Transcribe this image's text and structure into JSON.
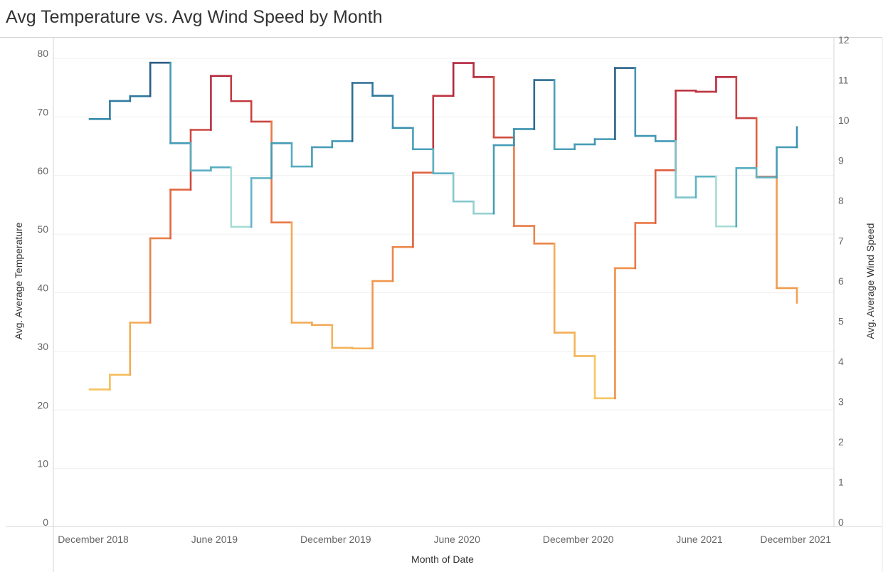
{
  "title": "Avg Temperature vs. Avg Wind Speed by Month",
  "chart_data": {
    "type": "line",
    "title": "Avg Temperature vs. Avg Wind Speed by Month",
    "xlabel": "Month of Date",
    "ylabel_left": "Avg. Average Temperature",
    "ylabel_right": "Avg. Average Wind Speed",
    "x_ticks": [
      "December 2018",
      "June 2019",
      "December 2019",
      "June 2020",
      "December 2020",
      "June 2021",
      "December 2021"
    ],
    "x_months": [
      "2018-12",
      "2019-01",
      "2019-02",
      "2019-03",
      "2019-04",
      "2019-05",
      "2019-06",
      "2019-07",
      "2019-08",
      "2019-09",
      "2019-10",
      "2019-11",
      "2019-12",
      "2020-01",
      "2020-02",
      "2020-03",
      "2020-04",
      "2020-05",
      "2020-06",
      "2020-07",
      "2020-08",
      "2020-09",
      "2020-10",
      "2020-11",
      "2020-12",
      "2021-01",
      "2021-02",
      "2021-03",
      "2021-04",
      "2021-05",
      "2021-06",
      "2021-07",
      "2021-08",
      "2021-09",
      "2021-10",
      "2021-11"
    ],
    "y_left_ticks": [
      "0",
      "10",
      "20",
      "30",
      "40",
      "50",
      "60",
      "70",
      "80"
    ],
    "y_right_ticks": [
      "0",
      "1",
      "2",
      "3",
      "4",
      "5",
      "6",
      "7",
      "8",
      "9",
      "10",
      "11",
      "12"
    ],
    "ylim_left": [
      0,
      80
    ],
    "ylim_right": [
      0,
      12
    ],
    "line_style": "step",
    "grid": true,
    "series": [
      {
        "axis": "left",
        "values": [
          23.5,
          26.0,
          34.9,
          49.3,
          57.6,
          67.8,
          77.0,
          72.7,
          69.2,
          52.0,
          34.9,
          34.5,
          30.6,
          30.5,
          42.0,
          47.8,
          60.5,
          73.6,
          79.2,
          76.8,
          66.5,
          51.4,
          48.4,
          33.2,
          29.2,
          22.0,
          44.2,
          51.9,
          60.9,
          74.5,
          74.3,
          76.8,
          69.8,
          59.8,
          40.8,
          38.3
        ],
        "color_scale": "temperature-diverging",
        "colors": [
          "#f6c760",
          "#f29a50",
          "#e0603f",
          "#b22640"
        ]
      },
      {
        "axis": "right",
        "values": [
          10.15,
          10.6,
          10.72,
          11.55,
          9.55,
          8.87,
          8.95,
          7.47,
          8.68,
          9.55,
          8.97,
          9.45,
          9.6,
          11.05,
          10.73,
          9.93,
          9.4,
          8.8,
          8.1,
          7.8,
          9.5,
          9.9,
          11.12,
          9.4,
          9.52,
          9.65,
          11.42,
          9.73,
          9.6,
          8.2,
          8.72,
          7.48,
          8.93,
          8.7,
          9.45,
          9.95
        ],
        "color_scale": "wind-sequential",
        "colors": [
          "#a8dcd6",
          "#5ab0c2",
          "#3489ab",
          "#2a5d85"
        ]
      }
    ]
  }
}
